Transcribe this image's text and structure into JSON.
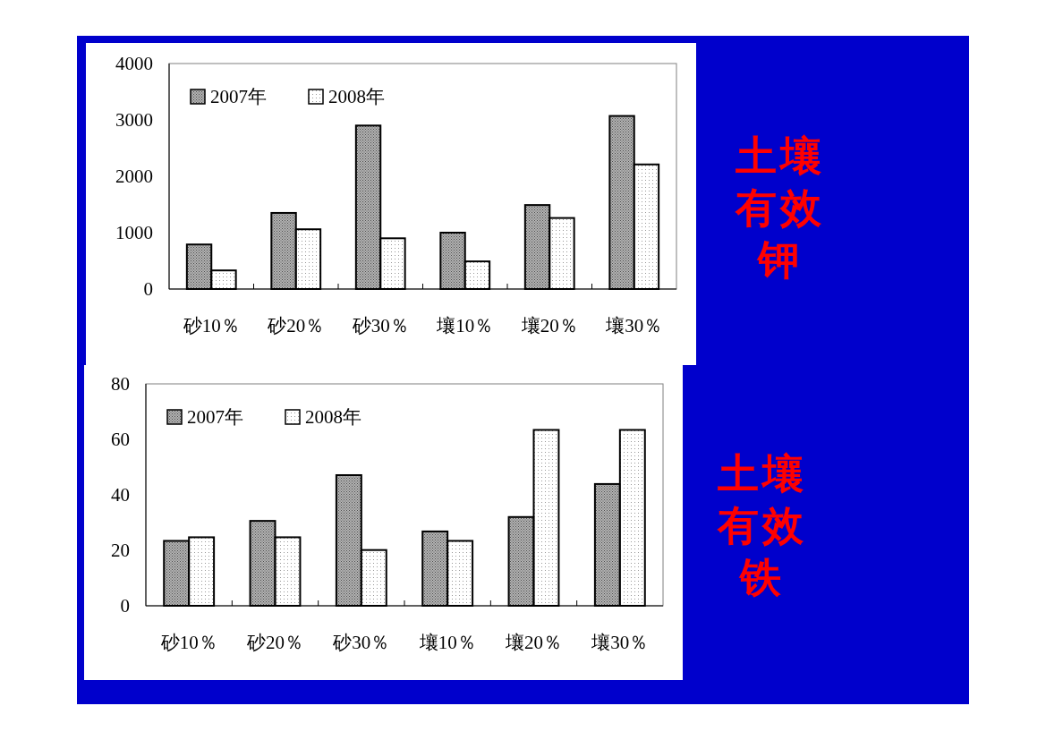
{
  "chart_data": [
    {
      "type": "bar",
      "annotations": [
        "土壤有效钾"
      ],
      "categories": [
        "砂10％",
        "砂20％",
        "砂30％",
        "壤10％",
        "壤20％",
        "壤30％"
      ],
      "series": [
        {
          "name": "2007年",
          "color": "#808080",
          "values": [
            790,
            1350,
            2900,
            1000,
            1490,
            3070
          ]
        },
        {
          "name": "2008年",
          "color": "#ffffff",
          "values": [
            330,
            1060,
            900,
            490,
            1260,
            2210
          ]
        }
      ],
      "ylim": [
        0,
        4000
      ],
      "yticks": [
        0,
        1000,
        2000,
        3000,
        4000
      ],
      "grid": false,
      "legend": "top left"
    },
    {
      "type": "bar",
      "annotations": [
        "土壤有效铁"
      ],
      "categories": [
        "砂10％",
        "砂20％",
        "砂30％",
        "壤10％",
        "壤20％",
        "壤30％"
      ],
      "series": [
        {
          "name": "2007年",
          "color": "#808080",
          "values": [
            23.4,
            30.6,
            47.1,
            26.8,
            32.0,
            43.9
          ]
        },
        {
          "name": "2008年",
          "color": "#ffffff",
          "values": [
            24.7,
            24.7,
            20.1,
            23.4,
            63.4,
            63.4
          ]
        }
      ],
      "ylim": [
        0,
        80
      ],
      "yticks": [
        0,
        20,
        40,
        60,
        80
      ],
      "grid": false,
      "legend": "top left"
    }
  ]
}
